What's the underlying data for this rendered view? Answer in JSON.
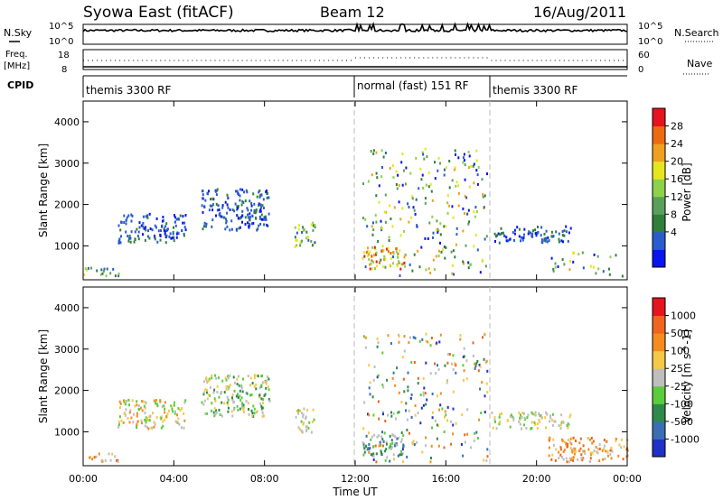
{
  "header": {
    "title": "Syowa East (fitACF)",
    "beam": "Beam 12",
    "date": "16/Aug/2011"
  },
  "strips": {
    "nsky": {
      "label": "N.Sky",
      "ticks": [
        "10^5",
        "10^0"
      ],
      "right_label": "N.Search",
      "right_ticks": [
        "10^5",
        "10^0"
      ]
    },
    "freq": {
      "label_line1": "Freq.",
      "label_line2": "[MHz]",
      "ticks": [
        "18",
        "8"
      ],
      "right_label": "Nave",
      "right_ticks": [
        "60",
        "0"
      ]
    },
    "cpid": {
      "label": "CPID",
      "segments": [
        {
          "label": "themis 3300 RF",
          "start_hour": 0
        },
        {
          "label": "normal (fast) 151 RF",
          "start_hour": 12
        },
        {
          "label": "themis 3300 RF",
          "start_hour": 18
        }
      ]
    }
  },
  "chart_data": [
    {
      "type": "heatmap",
      "name": "Power",
      "xlabel": "Time UT",
      "ylabel": "Slant Range [km]",
      "xlim": [
        0,
        24
      ],
      "ylim": [
        180,
        4500
      ],
      "y_ticks": [
        "1000",
        "2000",
        "3000",
        "4000"
      ],
      "x_ticks": [
        "00:00",
        "04:00",
        "08:00",
        "12:00",
        "16:00",
        "20:00",
        "00:00"
      ],
      "colorbar": {
        "label": "Power [dB]",
        "ticks": [
          "28",
          "24",
          "20",
          "16",
          "12",
          "8",
          "4"
        ],
        "colors": [
          "#0a14f0",
          "#2a5cd0",
          "#2f7f3a",
          "#5aa05a",
          "#8cd24b",
          "#e6e61e",
          "#f0a020",
          "#ee6a10",
          "#e6141e"
        ]
      },
      "echo_regions": [
        {
          "t": [
            0.0,
            1.6
          ],
          "range": [
            300,
            500
          ],
          "level": "mid"
        },
        {
          "t": [
            1.5,
            4.5
          ],
          "range": [
            1100,
            1800
          ],
          "level": "low"
        },
        {
          "t": [
            5.2,
            8.2
          ],
          "range": [
            1400,
            2400
          ],
          "level": "low"
        },
        {
          "t": [
            9.3,
            10.2
          ],
          "range": [
            1000,
            1600
          ],
          "level": "mid"
        },
        {
          "t": [
            12.3,
            14.2
          ],
          "range": [
            450,
            1000
          ],
          "level": "high"
        },
        {
          "t": [
            12.3,
            17.8
          ],
          "range": [
            300,
            3400
          ],
          "level": "mixed"
        },
        {
          "t": [
            18.0,
            21.5
          ],
          "range": [
            1100,
            1500
          ],
          "level": "low"
        },
        {
          "t": [
            20.5,
            24.0
          ],
          "range": [
            300,
            900
          ],
          "level": "mixed"
        }
      ]
    },
    {
      "type": "heatmap",
      "name": "Velocity",
      "xlabel": "Time UT",
      "ylabel": "Slant Range [km]",
      "xlim": [
        0,
        24
      ],
      "ylim": [
        180,
        4500
      ],
      "y_ticks": [
        "1000",
        "2000",
        "3000",
        "4000"
      ],
      "x_ticks": [
        "00:00",
        "04:00",
        "08:00",
        "12:00",
        "16:00",
        "20:00",
        "00:00"
      ],
      "colorbar": {
        "label": "Velocity [m s^-1]",
        "ticks": [
          "1000",
          "500",
          "100",
          "25",
          "-25",
          "-100",
          "-500",
          "-1000"
        ],
        "colors": [
          "#1e32c8",
          "#3a6eb4",
          "#2e8a4a",
          "#5acd3c",
          "#bebebe",
          "#f5c846",
          "#f58c1e",
          "#f0641e",
          "#e6141e"
        ]
      },
      "echo_regions": [
        {
          "t": [
            0.0,
            1.6
          ],
          "range": [
            300,
            500
          ],
          "level": "orange"
        },
        {
          "t": [
            1.5,
            4.5
          ],
          "range": [
            1100,
            1800
          ],
          "level": "yellow"
        },
        {
          "t": [
            5.2,
            8.2
          ],
          "range": [
            1400,
            2400
          ],
          "level": "green-grey"
        },
        {
          "t": [
            9.3,
            10.2
          ],
          "range": [
            1000,
            1600
          ],
          "level": "grey"
        },
        {
          "t": [
            12.3,
            14.2
          ],
          "range": [
            450,
            1000
          ],
          "level": "green"
        },
        {
          "t": [
            12.3,
            17.8
          ],
          "range": [
            300,
            3400
          ],
          "level": "mixed"
        },
        {
          "t": [
            18.0,
            21.5
          ],
          "range": [
            1100,
            1500
          ],
          "level": "grey"
        },
        {
          "t": [
            20.5,
            24.0
          ],
          "range": [
            300,
            900
          ],
          "level": "orange"
        }
      ]
    }
  ]
}
